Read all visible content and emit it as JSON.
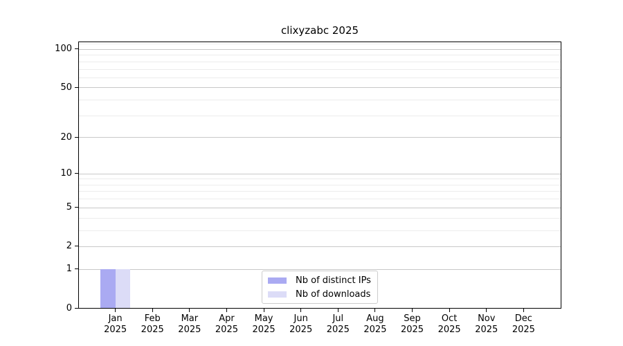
{
  "figure": {
    "background": "#ffffff"
  },
  "chart_data": {
    "type": "bar",
    "title": "clixyzabc 2025",
    "categories": [
      {
        "month": "Jan",
        "year": "2025"
      },
      {
        "month": "Feb",
        "year": "2025"
      },
      {
        "month": "Mar",
        "year": "2025"
      },
      {
        "month": "Apr",
        "year": "2025"
      },
      {
        "month": "May",
        "year": "2025"
      },
      {
        "month": "Jun",
        "year": "2025"
      },
      {
        "month": "Jul",
        "year": "2025"
      },
      {
        "month": "Aug",
        "year": "2025"
      },
      {
        "month": "Sep",
        "year": "2025"
      },
      {
        "month": "Oct",
        "year": "2025"
      },
      {
        "month": "Nov",
        "year": "2025"
      },
      {
        "month": "Dec",
        "year": "2025"
      }
    ],
    "series": [
      {
        "name": "Nb of distinct IPs",
        "color": "#aaaaf2",
        "values": [
          1,
          0,
          0,
          0,
          0,
          0,
          0,
          0,
          0,
          0,
          0,
          0
        ]
      },
      {
        "name": "Nb of downloads",
        "color": "#dcdcf7",
        "values": [
          1,
          0,
          0,
          0,
          0,
          0,
          0,
          0,
          0,
          0,
          0,
          0
        ]
      }
    ],
    "y_axis": {
      "scale": "log10(1+v)",
      "major_ticks": [
        0,
        1,
        2,
        5,
        10,
        20,
        50,
        100
      ],
      "minor_gridlines": [
        3,
        4,
        6,
        7,
        8,
        9,
        30,
        40,
        60,
        70,
        80,
        90,
        110
      ],
      "range": [
        0,
        116
      ]
    },
    "grid": {
      "major_color": "#c8c8c8",
      "minor_color": "#ececec"
    },
    "legend": {
      "position": "lower-center-inside"
    }
  }
}
